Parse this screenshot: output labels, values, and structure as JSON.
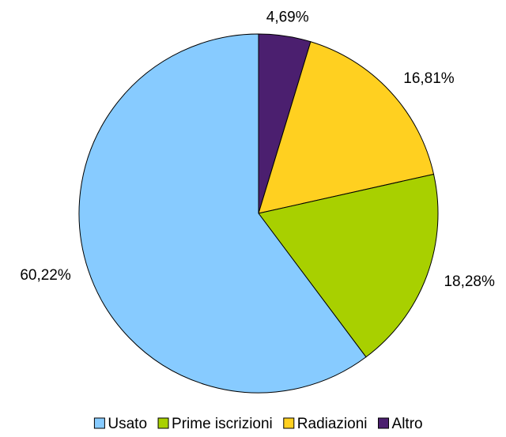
{
  "chart_data": {
    "type": "pie",
    "categories": [
      "Usato",
      "Prime iscrizioni",
      "Radiazioni",
      "Altro"
    ],
    "values": [
      60.22,
      18.28,
      16.81,
      4.69
    ],
    "value_labels": [
      "60,22%",
      "18,28%",
      "16,81%",
      "4,69%"
    ],
    "colors": [
      "#87cbff",
      "#a8d000",
      "#ffd020",
      "#4b1f6f"
    ],
    "legend": "bottom"
  }
}
